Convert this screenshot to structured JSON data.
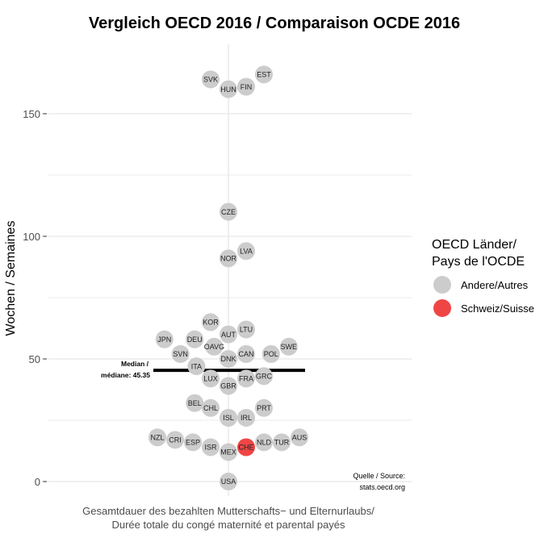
{
  "chart_data": {
    "type": "scatter",
    "title": "Vergleich OECD 2016 / Comparaison OCDE 2016",
    "ylabel": "Wochen / Semaines",
    "xlabel_lines": [
      "Gesamtdauer des bezahlten Mutterschafts− und Elternurlaubs/",
      "Durée totale du congé maternité et parental payés"
    ],
    "ylim": [
      -8,
      172
    ],
    "yticks": [
      0,
      50,
      100,
      150
    ],
    "grid": true,
    "legend": {
      "title_lines": [
        "OECD Länder/",
        "Pays de l'OCDE"
      ],
      "position": "right",
      "entries": [
        {
          "label": "Andere/Autres",
          "color": "#cccccc"
        },
        {
          "label": "Schweiz/Suisse",
          "color": "#f04545"
        }
      ]
    },
    "median": {
      "value": 45.35,
      "label_lines": [
        "Median /",
        "médiane: 45.35"
      ]
    },
    "source_lines": [
      "Quelle / Source:",
      "stats.oecd.org"
    ],
    "points": [
      {
        "label": "SVK",
        "x": -1,
        "y": 164,
        "group": "Andere/Autres"
      },
      {
        "label": "HUN",
        "x": 0,
        "y": 160,
        "group": "Andere/Autres"
      },
      {
        "label": "FIN",
        "x": 1,
        "y": 161,
        "group": "Andere/Autres"
      },
      {
        "label": "EST",
        "x": 2,
        "y": 166,
        "group": "Andere/Autres"
      },
      {
        "label": "CZE",
        "x": 0,
        "y": 110,
        "group": "Andere/Autres"
      },
      {
        "label": "NOR",
        "x": 0,
        "y": 91,
        "group": "Andere/Autres"
      },
      {
        "label": "LVA",
        "x": 1,
        "y": 94,
        "group": "Andere/Autres"
      },
      {
        "label": "KOR",
        "x": -1,
        "y": 65,
        "group": "Andere/Autres"
      },
      {
        "label": "AUT",
        "x": 0,
        "y": 60,
        "group": "Andere/Autres"
      },
      {
        "label": "LTU",
        "x": 1,
        "y": 62,
        "group": "Andere/Autres"
      },
      {
        "label": "JPN",
        "x": -3.6,
        "y": 58,
        "group": "Andere/Autres"
      },
      {
        "label": "DEU",
        "x": -1.9,
        "y": 58,
        "group": "Andere/Autres"
      },
      {
        "label": "OAVG",
        "x": -0.8,
        "y": 55,
        "group": "Andere/Autres"
      },
      {
        "label": "SWE",
        "x": 3.4,
        "y": 55,
        "group": "Andere/Autres"
      },
      {
        "label": "SVN",
        "x": -2.7,
        "y": 52,
        "group": "Andere/Autres"
      },
      {
        "label": "CAN",
        "x": 1,
        "y": 52,
        "group": "Andere/Autres"
      },
      {
        "label": "POL",
        "x": 2.4,
        "y": 52,
        "group": "Andere/Autres"
      },
      {
        "label": "DNK",
        "x": 0,
        "y": 50,
        "group": "Andere/Autres"
      },
      {
        "label": "ITA",
        "x": -1.8,
        "y": 47,
        "group": "Andere/Autres"
      },
      {
        "label": "LUX",
        "x": -1,
        "y": 42,
        "group": "Andere/Autres"
      },
      {
        "label": "FRA",
        "x": 1,
        "y": 42,
        "group": "Andere/Autres"
      },
      {
        "label": "GRC",
        "x": 2,
        "y": 43,
        "group": "Andere/Autres"
      },
      {
        "label": "GBR",
        "x": 0,
        "y": 39,
        "group": "Andere/Autres"
      },
      {
        "label": "BEL",
        "x": -1.9,
        "y": 32,
        "group": "Andere/Autres"
      },
      {
        "label": "CHL",
        "x": -1,
        "y": 30,
        "group": "Andere/Autres"
      },
      {
        "label": "PRT",
        "x": 2,
        "y": 30,
        "group": "Andere/Autres"
      },
      {
        "label": "ISL",
        "x": 0,
        "y": 26,
        "group": "Andere/Autres"
      },
      {
        "label": "IRL",
        "x": 1,
        "y": 26,
        "group": "Andere/Autres"
      },
      {
        "label": "NZL",
        "x": -4,
        "y": 18,
        "group": "Andere/Autres"
      },
      {
        "label": "CRI",
        "x": -3,
        "y": 17,
        "group": "Andere/Autres"
      },
      {
        "label": "ESP",
        "x": -2,
        "y": 16,
        "group": "Andere/Autres"
      },
      {
        "label": "ISR",
        "x": -1,
        "y": 14,
        "group": "Andere/Autres"
      },
      {
        "label": "MEX",
        "x": 0,
        "y": 12,
        "group": "Andere/Autres"
      },
      {
        "label": "CHE",
        "x": 1,
        "y": 14,
        "group": "Schweiz/Suisse"
      },
      {
        "label": "NLD",
        "x": 2,
        "y": 16,
        "group": "Andere/Autres"
      },
      {
        "label": "TUR",
        "x": 3,
        "y": 16,
        "group": "Andere/Autres"
      },
      {
        "label": "AUS",
        "x": 4,
        "y": 18,
        "group": "Andere/Autres"
      },
      {
        "label": "USA",
        "x": 0,
        "y": 0,
        "group": "Andere/Autres"
      }
    ]
  }
}
